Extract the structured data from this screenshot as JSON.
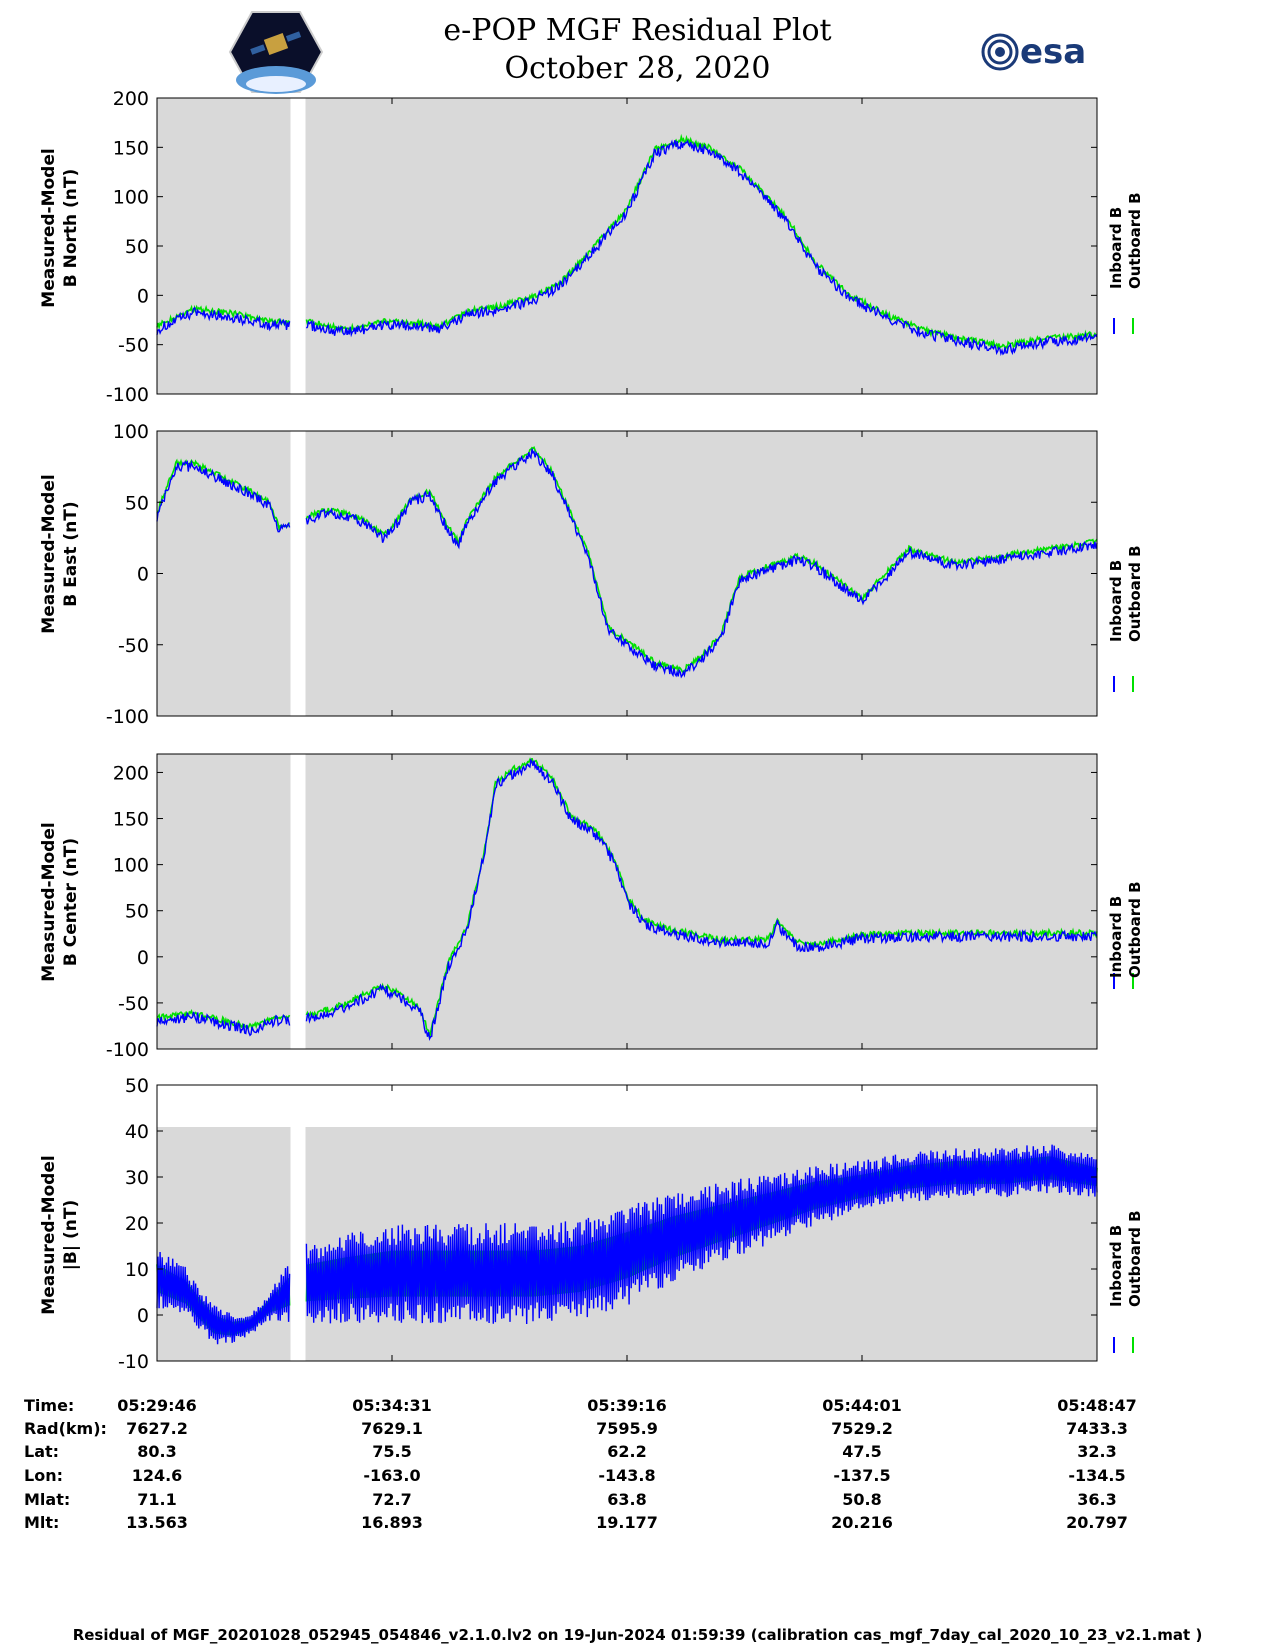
{
  "header": {
    "title_line1": "e-POP MGF Residual Plot",
    "title_line2": "October 28, 2020",
    "logo_right_text": "esa"
  },
  "colors": {
    "inboard": "#0000ff",
    "outboard": "#00e000",
    "panel_bg": "#d9d9d9",
    "gap": "#ffffff"
  },
  "chart_data": [
    {
      "type": "line",
      "ylabel_line1": "Measured-Model",
      "ylabel_line2": "B North (nT)",
      "ylim": [
        -100,
        200
      ],
      "yticks": [
        "200",
        "150",
        "100",
        "50",
        "0",
        "-50",
        "-100"
      ],
      "legend": [
        "Inboard B",
        "Outboard B"
      ],
      "series": [
        {
          "name": "Inboard B",
          "x": [
            0,
            4,
            8,
            12,
            16,
            20,
            24,
            28,
            30,
            33,
            36,
            40,
            43,
            46,
            50,
            53,
            56,
            59,
            62,
            64,
            67,
            70,
            74,
            78,
            82,
            86,
            90,
            94,
            100
          ],
          "values": [
            -35,
            -17,
            -22,
            -30,
            -30,
            -38,
            -30,
            -32,
            -35,
            -20,
            -15,
            -5,
            10,
            40,
            85,
            145,
            155,
            145,
            125,
            105,
            75,
            30,
            -5,
            -25,
            -40,
            -48,
            -55,
            -48,
            -43
          ]
        }
      ]
    },
    {
      "type": "line",
      "ylabel_line1": "Measured-Model",
      "ylabel_line2": "B East (nT)",
      "ylim": [
        -100,
        100
      ],
      "yticks": [
        "100",
        "50",
        "0",
        "-50",
        "-100"
      ],
      "legend": [
        "Inboard B",
        "Outboard B"
      ],
      "series": [
        {
          "name": "Inboard B",
          "x": [
            0,
            2,
            4,
            7,
            10,
            12,
            13,
            15,
            18,
            20,
            22,
            24,
            25,
            27,
            29,
            31,
            32,
            33,
            35,
            36,
            38,
            40,
            42,
            44,
            46,
            48,
            50,
            53,
            56,
            58,
            60,
            62,
            64,
            65,
            66,
            67,
            68,
            70,
            75,
            80,
            85,
            90,
            95,
            100
          ],
          "values": [
            40,
            75,
            75,
            65,
            55,
            48,
            30,
            35,
            42,
            40,
            35,
            25,
            30,
            50,
            55,
            30,
            20,
            35,
            55,
            65,
            75,
            85,
            70,
            40,
            10,
            -40,
            -50,
            -65,
            -70,
            -60,
            -45,
            -5,
            0,
            3,
            5,
            6,
            10,
            5,
            -20,
            15,
            5,
            10,
            15,
            20
          ]
        }
      ]
    },
    {
      "type": "line",
      "ylabel_line1": "Measured-Model",
      "ylabel_line2": "B Center (nT)",
      "ylim": [
        -100,
        220
      ],
      "yticks": [
        "200",
        "150",
        "100",
        "50",
        "0",
        "-50",
        "-100"
      ],
      "legend": [
        "Inboard B",
        "Outboard B"
      ],
      "series": [
        {
          "name": "Inboard B",
          "x": [
            0,
            4,
            8,
            10,
            13,
            15,
            17,
            20,
            22,
            24,
            26,
            28,
            29,
            31,
            33,
            35,
            36,
            38,
            40,
            42,
            44,
            47,
            49,
            50,
            52,
            55,
            60,
            65,
            66,
            68,
            70,
            75,
            80,
            85,
            90,
            95,
            100
          ],
          "values": [
            -70,
            -65,
            -75,
            -80,
            -68,
            -70,
            -65,
            -55,
            -45,
            -35,
            -45,
            -60,
            -90,
            -10,
            30,
            120,
            185,
            200,
            210,
            190,
            150,
            130,
            95,
            60,
            35,
            25,
            15,
            15,
            35,
            12,
            10,
            20,
            22,
            22,
            22,
            22,
            22
          ]
        }
      ]
    },
    {
      "type": "area",
      "ylabel_line1": "Measured-Model",
      "ylabel_line2": "|B| (nT)",
      "ylim": [
        -10,
        50
      ],
      "yticks": [
        "50",
        "40",
        "30",
        "20",
        "10",
        "0",
        "-10"
      ],
      "legend": [
        "Inboard B",
        "Outboard B"
      ],
      "series": [
        {
          "name": "Inboard B",
          "x": [
            0,
            3,
            6,
            8,
            10,
            12,
            14,
            16,
            20,
            25,
            30,
            35,
            40,
            45,
            50,
            55,
            60,
            65,
            70,
            75,
            80,
            85,
            90,
            95,
            100
          ],
          "values_mid": [
            8,
            5,
            -2,
            -3,
            -2,
            2,
            5,
            7,
            8,
            9,
            9,
            9,
            9,
            10,
            13,
            17,
            20,
            23,
            26,
            28,
            30,
            31,
            31,
            32,
            30
          ],
          "values_amp": [
            6,
            5,
            4,
            3,
            2,
            3,
            6,
            8,
            9,
            10,
            10,
            10,
            10,
            10,
            10,
            9,
            8,
            7,
            6,
            5,
            5,
            5,
            5,
            5,
            4
          ]
        }
      ]
    }
  ],
  "time_axis": {
    "rows": [
      {
        "label": "Time:",
        "values": [
          "05:29:46",
          "05:34:31",
          "05:39:16",
          "05:44:01",
          "05:48:47"
        ]
      },
      {
        "label": "Rad(km):",
        "values": [
          "7627.2",
          "7629.1",
          "7595.9",
          "7529.2",
          "7433.3"
        ]
      },
      {
        "label": "Lat:",
        "values": [
          "80.3",
          "75.5",
          "62.2",
          "47.5",
          "32.3"
        ]
      },
      {
        "label": "Lon:",
        "values": [
          "124.6",
          "-163.0",
          "-143.8",
          "-137.5",
          "-134.5"
        ]
      },
      {
        "label": "Mlat:",
        "values": [
          "71.1",
          "72.7",
          "63.8",
          "50.8",
          "36.3"
        ]
      },
      {
        "label": "Mlt:",
        "values": [
          "13.563",
          "16.893",
          "19.177",
          "20.216",
          "20.797"
        ]
      }
    ]
  },
  "footer": "Residual of MGF_20201028_052945_054846_v2.1.0.lv2 on 19-Jun-2024 01:59:39 (calibration cas_mgf_7day_cal_2020_10_23_v2.1.mat )"
}
